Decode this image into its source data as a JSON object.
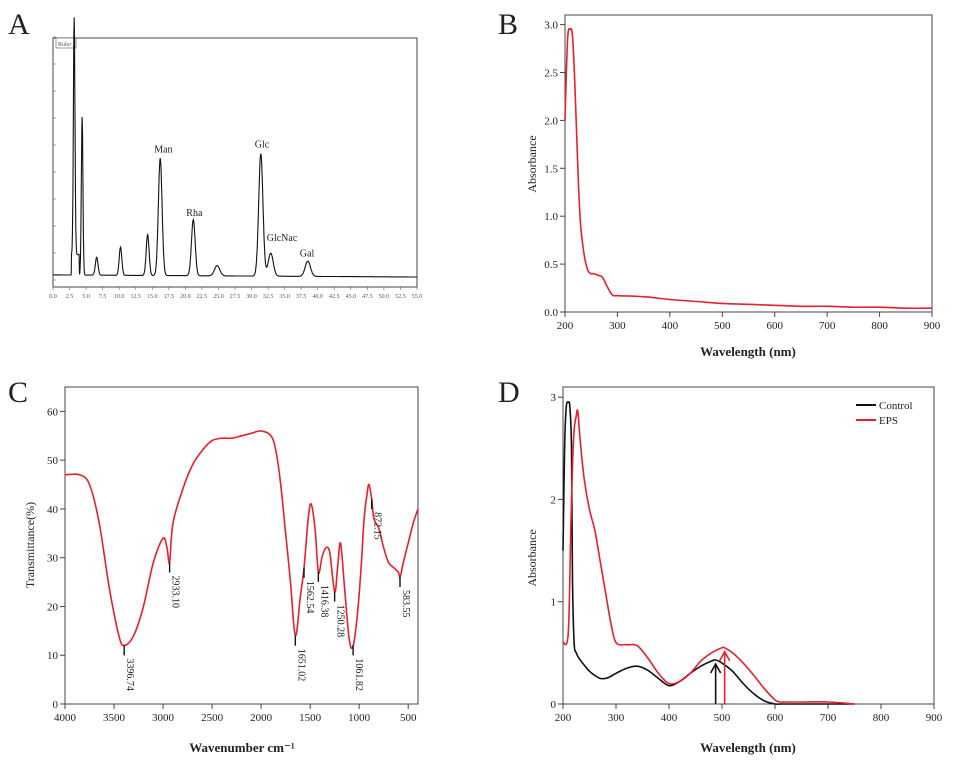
{
  "panels": {
    "A": {
      "letter": "A",
      "type": "chromatogram",
      "legend_box_text": "Ruler",
      "x_tick_labels": [
        "0.0",
        "2.5",
        "5.0",
        "7.5",
        "10.0",
        "12.5",
        "15.0",
        "17.5",
        "20.0",
        "22.5",
        "25.0",
        "27.5",
        "30.0",
        "32.5",
        "35.0",
        "37.5",
        "40.0",
        "42.5",
        "45.0",
        "47.5",
        "50.0",
        "52.5",
        "55.0"
      ],
      "peaks": [
        {
          "x": 3.2,
          "height": 0.93,
          "label": ""
        },
        {
          "x": 4.4,
          "height": 0.62,
          "label": ""
        },
        {
          "x": 6.6,
          "height": 0.07,
          "label": ""
        },
        {
          "x": 10.2,
          "height": 0.11,
          "label": ""
        },
        {
          "x": 14.3,
          "height": 0.16,
          "label": ""
        },
        {
          "x": 16.2,
          "height": 0.46,
          "label": "Man"
        },
        {
          "x": 21.2,
          "height": 0.22,
          "label": "Rha"
        },
        {
          "x": 24.8,
          "height": 0.04,
          "label": ""
        },
        {
          "x": 31.4,
          "height": 0.48,
          "label": "Glc"
        },
        {
          "x": 32.9,
          "height": 0.09,
          "label": "GlcNac"
        },
        {
          "x": 38.5,
          "height": 0.06,
          "label": "Gal"
        }
      ]
    },
    "B": {
      "letter": "B",
      "xlabel": "Wavelength (nm)",
      "ylabel": "Absorbance",
      "xlim": [
        200,
        900
      ],
      "ylim": [
        0,
        3.1
      ],
      "x_ticks": [
        "200",
        "300",
        "400",
        "500",
        "600",
        "700",
        "800",
        "900"
      ],
      "y_ticks": [
        "0.0",
        "0.5",
        "1.0",
        "1.5",
        "2.0",
        "2.5",
        "3.0"
      ],
      "color": "#e8202c"
    },
    "C": {
      "letter": "C",
      "xlabel": "Wavenumber cm⁻¹",
      "ylabel": "Transmittance(%)",
      "xlim": [
        4000,
        400
      ],
      "ylim": [
        0,
        65
      ],
      "x_ticks": [
        "4000",
        "3500",
        "3000",
        "2500",
        "2000",
        "1500",
        "1000",
        "500"
      ],
      "y_ticks": [
        "0",
        "10",
        "20",
        "30",
        "40",
        "50",
        "60"
      ],
      "color": "#e8202c",
      "annotations": [
        {
          "x": 3396.74,
          "label": "3396.74"
        },
        {
          "x": 2933.1,
          "label": "2933.10"
        },
        {
          "x": 1651.02,
          "label": "1651.02"
        },
        {
          "x": 1562.54,
          "label": "1562.54"
        },
        {
          "x": 1416.38,
          "label": "1416.38"
        },
        {
          "x": 1250.28,
          "label": "1250.28"
        },
        {
          "x": 1061.82,
          "label": "1061.82"
        },
        {
          "x": 872.15,
          "label": "872.15"
        },
        {
          "x": 583.55,
          "label": "583.55"
        }
      ]
    },
    "D": {
      "letter": "D",
      "xlabel": "Wavelength (nm)",
      "ylabel": "Absorbance",
      "xlim": [
        200,
        900
      ],
      "ylim": [
        0,
        3.1
      ],
      "x_ticks": [
        "200",
        "300",
        "400",
        "500",
        "600",
        "700",
        "800",
        "900"
      ],
      "y_ticks": [
        "0",
        "1",
        "2",
        "3"
      ],
      "legend": [
        {
          "name": "Control",
          "color": "#111111"
        },
        {
          "name": "EPS",
          "color": "#e8202c"
        }
      ]
    }
  },
  "chart_data": [
    {
      "type": "line",
      "title": "",
      "xlabel": "",
      "ylabel": "",
      "xlim": [
        0,
        55
      ],
      "series": [
        {
          "x": [
            3.2,
            4.4,
            6.6,
            10.2,
            14.3,
            16.2,
            21.2,
            24.8,
            31.4,
            32.9,
            38.5
          ],
          "values": [
            0.93,
            0.62,
            0.07,
            0.11,
            0.16,
            0.46,
            0.22,
            0.04,
            0.48,
            0.09,
            0.06
          ]
        }
      ],
      "annotations": [
        "Man",
        "Rha",
        "Glc",
        "GlcNac",
        "Gal"
      ]
    },
    {
      "type": "line",
      "xlabel": "Wavelength (nm)",
      "ylabel": "Absorbance",
      "xlim": [
        200,
        900
      ],
      "ylim": [
        0,
        3.1
      ],
      "series": [
        {
          "x": [
            200,
            205,
            210,
            214,
            218,
            222,
            226,
            230,
            235,
            240,
            245,
            250,
            255,
            260,
            265,
            270,
            275,
            280,
            290,
            300,
            350,
            400,
            450,
            500,
            550,
            600,
            650,
            700,
            750,
            800,
            850,
            900
          ],
          "values": [
            2.0,
            2.85,
            2.95,
            2.9,
            2.5,
            1.9,
            1.3,
            0.9,
            0.65,
            0.5,
            0.42,
            0.4,
            0.4,
            0.39,
            0.38,
            0.37,
            0.33,
            0.27,
            0.18,
            0.17,
            0.16,
            0.13,
            0.11,
            0.09,
            0.08,
            0.07,
            0.06,
            0.06,
            0.05,
            0.05,
            0.04,
            0.04
          ]
        }
      ]
    },
    {
      "type": "line",
      "xlabel": "Wavenumber cm⁻¹",
      "ylabel": "Transmittance(%)",
      "xlim": [
        4000,
        400
      ],
      "ylim": [
        0,
        65
      ],
      "series": [
        {
          "x": [
            4000,
            3850,
            3750,
            3650,
            3550,
            3450,
            3396,
            3300,
            3200,
            3100,
            3000,
            2960,
            2933,
            2900,
            2800,
            2700,
            2600,
            2500,
            2400,
            2300,
            2200,
            2100,
            2000,
            1900,
            1850,
            1800,
            1750,
            1700,
            1651,
            1600,
            1562,
            1520,
            1490,
            1450,
            1416,
            1380,
            1340,
            1300,
            1250,
            1220,
            1190,
            1150,
            1100,
            1061,
            1020,
            980,
            950,
            920,
            900,
            872,
            850,
            800,
            750,
            700,
            650,
            600,
            583,
            550,
            500,
            450,
            400
          ],
          "values": [
            47,
            47,
            45,
            37,
            24,
            14,
            12,
            14,
            20,
            29,
            34,
            32,
            29,
            37,
            44,
            49,
            52,
            54,
            54.5,
            54.5,
            55,
            55.5,
            56,
            55,
            52,
            45,
            35,
            25,
            14,
            22,
            28,
            38,
            41,
            36,
            27,
            30,
            32,
            31,
            23,
            28,
            33,
            24,
            13,
            12,
            18,
            28,
            38,
            43,
            45,
            42,
            38,
            36,
            32,
            29,
            28,
            27,
            26,
            29,
            33,
            37,
            40
          ]
        }
      ],
      "annotations": [
        "3396.74",
        "2933.10",
        "1651.02",
        "1562.54",
        "1416.38",
        "1250.28",
        "1061.82",
        "872.15",
        "583.55"
      ]
    },
    {
      "type": "line",
      "xlabel": "Wavelength (nm)",
      "ylabel": "Absorbance",
      "xlim": [
        200,
        900
      ],
      "ylim": [
        0,
        3.1
      ],
      "series": [
        {
          "name": "Control",
          "x": [
            200,
            203,
            206,
            210,
            213,
            216,
            218,
            221,
            225,
            230,
            240,
            250,
            260,
            270,
            280,
            290,
            300,
            320,
            340,
            360,
            380,
            400,
            420,
            440,
            460,
            480,
            488,
            500,
            520,
            540,
            560,
            580,
            600,
            610,
            620,
            650,
            700,
            750
          ],
          "values": [
            1.5,
            2.5,
            2.9,
            2.95,
            2.9,
            2.5,
            1.2,
            0.6,
            0.5,
            0.45,
            0.38,
            0.32,
            0.28,
            0.25,
            0.25,
            0.27,
            0.3,
            0.35,
            0.37,
            0.33,
            0.25,
            0.18,
            0.22,
            0.3,
            0.37,
            0.42,
            0.43,
            0.4,
            0.32,
            0.2,
            0.1,
            0.03,
            0.0,
            0.0,
            0.0,
            0.0,
            0.0,
            0.0
          ]
        },
        {
          "name": "EPS",
          "x": [
            200,
            210,
            215,
            220,
            225,
            228,
            232,
            240,
            250,
            260,
            270,
            280,
            290,
            300,
            320,
            340,
            360,
            380,
            400,
            420,
            440,
            460,
            480,
            500,
            505,
            520,
            540,
            560,
            580,
            600,
            610,
            620,
            650,
            700,
            750
          ],
          "values": [
            0.6,
            0.7,
            1.8,
            2.6,
            2.82,
            2.86,
            2.6,
            2.2,
            1.9,
            1.7,
            1.4,
            1.1,
            0.8,
            0.6,
            0.58,
            0.57,
            0.45,
            0.3,
            0.2,
            0.22,
            0.3,
            0.42,
            0.5,
            0.55,
            0.55,
            0.5,
            0.4,
            0.28,
            0.15,
            0.04,
            0.02,
            0.02,
            0.02,
            0.02,
            0.0
          ]
        }
      ]
    }
  ]
}
